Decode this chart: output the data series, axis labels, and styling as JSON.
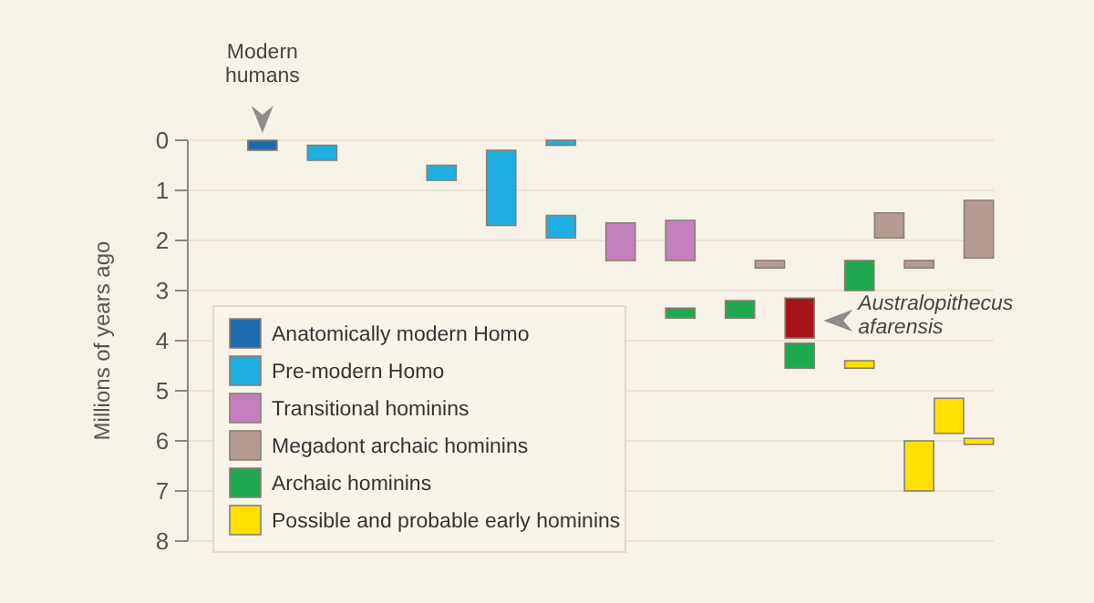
{
  "chart_data": {
    "type": "bar",
    "ylabel": "Millions of years ago",
    "ylim": [
      8,
      0
    ],
    "yticks": [
      0,
      1,
      2,
      3,
      4,
      5,
      6,
      7,
      8
    ],
    "grid": "y",
    "legend": "bottom left",
    "categories": [
      null,
      null,
      null,
      null,
      null,
      null,
      null,
      null,
      null,
      null,
      null,
      null,
      null,
      null,
      null,
      null,
      null,
      null,
      null,
      null,
      null,
      null,
      null,
      null,
      null,
      null,
      null
    ],
    "series": [
      {
        "name": "Anatomically modern Homo",
        "color": "#1f6bb0",
        "values": [
          null,
          null,
          0.2,
          null,
          null,
          null,
          null,
          null,
          null,
          null,
          null,
          null,
          null,
          null,
          null,
          null,
          null,
          null,
          null,
          null,
          null,
          null,
          null,
          null,
          null,
          null,
          null
        ],
        "base": [
          null,
          null,
          0,
          null,
          null,
          null,
          null,
          null,
          null,
          null,
          null,
          null,
          null,
          null,
          null,
          null,
          null,
          null,
          null,
          null,
          null,
          null,
          null,
          null,
          null,
          null,
          null
        ]
      },
      {
        "name": "Pre-modern Homo",
        "color": "#1eaee0",
        "values": [
          null,
          null,
          null,
          null,
          0.3,
          null,
          null,
          null,
          0.3,
          null,
          1.5,
          null,
          0.1,
          null,
          null,
          null,
          null,
          null,
          null,
          null,
          null,
          null,
          null,
          null,
          null,
          null,
          null
        ],
        "base": [
          null,
          null,
          null,
          null,
          0.1,
          null,
          null,
          null,
          0.5,
          null,
          0.2,
          null,
          0,
          null,
          null,
          null,
          null,
          null,
          null,
          null,
          null,
          null,
          null,
          null,
          null,
          null,
          null
        ]
      },
      {
        "color": "#1eaee0",
        "values": [
          null,
          null,
          null,
          null,
          null,
          null,
          null,
          null,
          null,
          null,
          null,
          null,
          0.45,
          null,
          null,
          null,
          null,
          null,
          null,
          null,
          null,
          null,
          null,
          null,
          null,
          null,
          null
        ],
        "base": [
          null,
          null,
          null,
          null,
          null,
          null,
          null,
          null,
          null,
          null,
          null,
          null,
          1.5,
          null,
          null,
          null,
          null,
          null,
          null,
          null,
          null,
          null,
          null,
          null,
          null,
          null,
          null
        ]
      },
      {
        "name": "Transitional hominins",
        "color": "#c47fbf",
        "values": [
          null,
          null,
          null,
          null,
          null,
          null,
          null,
          null,
          null,
          null,
          null,
          null,
          null,
          null,
          0.75,
          null,
          0.8,
          null,
          null,
          null,
          null,
          null,
          null,
          null,
          null,
          null,
          null
        ],
        "base": [
          null,
          null,
          null,
          null,
          null,
          null,
          null,
          null,
          null,
          null,
          null,
          null,
          null,
          null,
          1.65,
          null,
          1.6,
          null,
          null,
          null,
          null,
          null,
          null,
          null,
          null,
          null,
          null
        ]
      },
      {
        "name": "Megadont archaic hominins",
        "color": "#b39a92",
        "values": [
          null,
          null,
          null,
          null,
          null,
          null,
          null,
          null,
          null,
          null,
          null,
          null,
          null,
          null,
          null,
          null,
          null,
          null,
          null,
          0.15,
          null,
          null,
          null,
          0.5,
          0.15,
          null,
          1.15
        ],
        "base": [
          null,
          null,
          null,
          null,
          null,
          null,
          null,
          null,
          null,
          null,
          null,
          null,
          null,
          null,
          null,
          null,
          null,
          null,
          null,
          2.4,
          null,
          null,
          null,
          1.45,
          2.4,
          null,
          1.2
        ]
      },
      {
        "name": "Archaic hominins",
        "color": "#1ea84f",
        "values": [
          null,
          null,
          null,
          null,
          null,
          null,
          null,
          null,
          null,
          null,
          null,
          null,
          null,
          null,
          null,
          null,
          0.2,
          null,
          0.35,
          null,
          0.5,
          null,
          0.6,
          null,
          null,
          null,
          null
        ],
        "base": [
          null,
          null,
          null,
          null,
          null,
          null,
          null,
          null,
          null,
          null,
          null,
          null,
          null,
          null,
          null,
          null,
          3.35,
          null,
          3.2,
          null,
          4.05,
          null,
          2.4,
          null,
          null,
          null,
          null
        ]
      },
      {
        "name": "Possible and probable early hominins",
        "color": "#ffe000",
        "values": [
          null,
          null,
          null,
          null,
          null,
          null,
          null,
          null,
          null,
          null,
          null,
          null,
          null,
          null,
          null,
          null,
          null,
          null,
          null,
          null,
          null,
          null,
          0.15,
          null,
          1.0,
          0.7,
          0.12
        ],
        "base": [
          null,
          null,
          null,
          null,
          null,
          null,
          null,
          null,
          null,
          null,
          null,
          null,
          null,
          null,
          null,
          null,
          null,
          null,
          null,
          null,
          null,
          null,
          4.4,
          null,
          6.0,
          5.15,
          5.95
        ]
      },
      {
        "color": "#a8141a",
        "values": [
          null,
          null,
          null,
          null,
          null,
          null,
          null,
          null,
          null,
          null,
          null,
          null,
          null,
          null,
          null,
          null,
          null,
          null,
          null,
          null,
          0.8,
          null,
          null,
          null,
          null,
          null,
          null
        ],
        "base": [
          null,
          null,
          null,
          null,
          null,
          null,
          null,
          null,
          null,
          null,
          null,
          null,
          null,
          null,
          null,
          null,
          null,
          null,
          null,
          null,
          3.15,
          null,
          null,
          null,
          null,
          null,
          null
        ]
      }
    ],
    "annotations": [
      "Modern humans",
      "Australopithecus afarensis"
    ]
  }
}
